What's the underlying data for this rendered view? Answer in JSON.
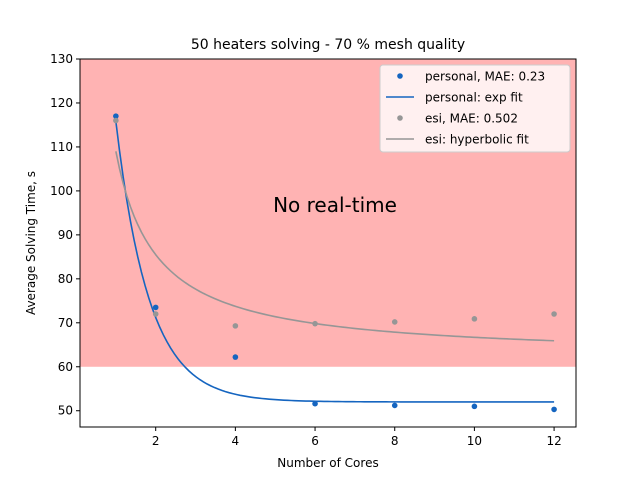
{
  "chart_data": {
    "type": "scatter",
    "title": "50 heaters solving - 70 % mesh quality",
    "xlabel": "Number of Cores",
    "ylabel": "Average Solving Time, s",
    "xlim": [
      0.1,
      12.55
    ],
    "ylim": [
      46.3,
      130
    ],
    "xticks": [
      2,
      4,
      6,
      8,
      10,
      12
    ],
    "yticks": [
      50,
      60,
      70,
      80,
      90,
      100,
      110,
      120,
      130
    ],
    "grid": false,
    "legend_position": "upper-right",
    "region": {
      "y_from": 60,
      "y_to": 130,
      "color": "#ffb3b3",
      "label": "No real-time"
    },
    "series": [
      {
        "name": "personal, MAE: 0.23",
        "kind": "points",
        "color": "#1565c0",
        "x": [
          1,
          2,
          4,
          6,
          8,
          10,
          12
        ],
        "y": [
          117,
          73.5,
          62.2,
          51.6,
          51.2,
          51,
          50.3
        ]
      },
      {
        "name": "personal: exp fit",
        "kind": "line",
        "color": "#1565c0",
        "model": {
          "form": "a*exp(-b*(x-1))+c",
          "a": 63.8,
          "b": 1.2,
          "c": 52
        },
        "x_range": [
          1,
          12
        ]
      },
      {
        "name": "esi, MAE: 0.502",
        "kind": "points",
        "color": "#969696",
        "x": [
          1,
          2,
          4,
          6,
          8,
          10,
          12
        ],
        "y": [
          116,
          72,
          69.3,
          69.8,
          70.2,
          70.9,
          72
        ]
      },
      {
        "name": "esi: hyperbolic fit",
        "kind": "line",
        "color": "#969696",
        "model": {
          "form": "a/x+c",
          "a": 47,
          "c": 62
        },
        "x_range": [
          1,
          12
        ]
      }
    ]
  }
}
